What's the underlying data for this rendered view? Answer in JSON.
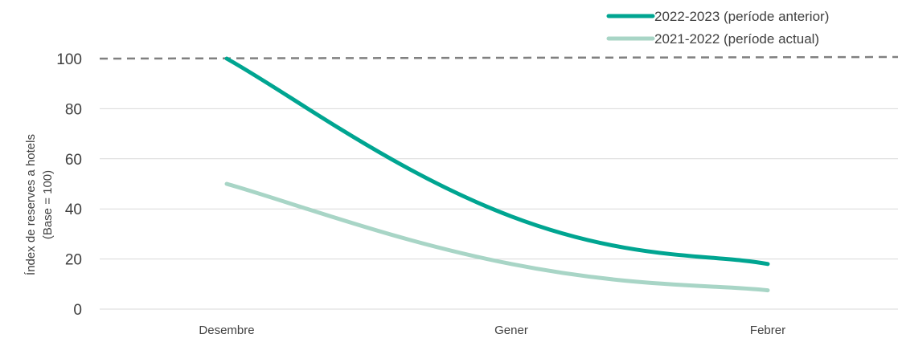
{
  "chart_data": {
    "type": "line",
    "categories": [
      "Desembre",
      "Gener",
      "Febrer"
    ],
    "series": [
      {
        "name": "2022-2023 (període anterior)",
        "values": [
          100,
          37,
          18
        ],
        "color": "#00A591"
      },
      {
        "name": "2021-2022 (període actual)",
        "values": [
          50,
          18,
          7.5
        ],
        "color": "#A8D5C6"
      }
    ],
    "reference_line": {
      "value": 100,
      "style": "dashed",
      "color": "#808080"
    },
    "ylabel_line1": "Índex de reserves a hotels",
    "ylabel_line2": "(Base = 100)",
    "ylim": [
      0,
      100
    ],
    "yticks": [
      0,
      20,
      40,
      60,
      80,
      100
    ],
    "grid": true,
    "legend_position": "top-right",
    "axis_color": "#d9d9d9",
    "grid_color": "#d9d9d9"
  }
}
